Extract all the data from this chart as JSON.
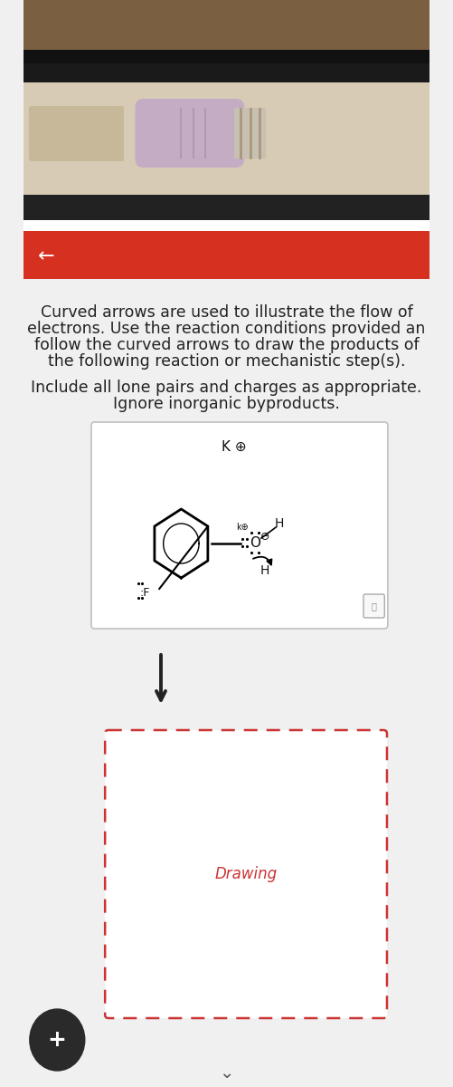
{
  "bg_photo_top_color": "#c8b8a0",
  "bg_dark_strip": "#1c1c1c",
  "bg_tablet_bezel": "#d8cbb5",
  "bg_pencil_body": "#d8cbb5",
  "bg_pencil_eraser": "#c4adc4",
  "bg_pencil_metal": "#c8c0b0",
  "bg_pencil_metal_stripe": "#a89880",
  "bg_wood": "#6e5a3e",
  "bg_red_bar": "#d63020",
  "bg_white_content": "#f0f0f0",
  "text_color": "#222222",
  "title_lines": [
    "Curved arrows are used to illustrate the flow of",
    "electrons. Use the reaction conditions provided an",
    "follow the curved arrows to draw the products of",
    "the following reaction or mechanistic step(s)."
  ],
  "subtitle_lines": [
    "Include all lone pairs and charges as appropriate.",
    "Ignore inorganic byproducts."
  ],
  "ko_label": "K ⊕",
  "drawing_label": "Drawing",
  "back_arrow": "←",
  "plus_label": "+",
  "font_size_title": 12.5,
  "font_size_sub": 12.5
}
